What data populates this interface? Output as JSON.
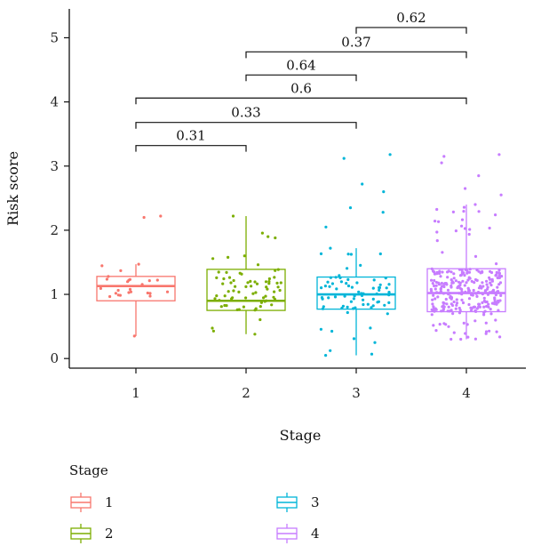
{
  "chart_data": {
    "type": "boxplot",
    "xlabel": "Stage",
    "ylabel": "Risk score",
    "categories": [
      "1",
      "2",
      "3",
      "4"
    ],
    "ylim": [
      -0.15,
      5.45
    ],
    "yticks": [
      0,
      1,
      2,
      3,
      4,
      5
    ],
    "grid": false,
    "legend": {
      "title": "Stage",
      "placement": "bottom-left",
      "entries": [
        "1",
        "2",
        "3",
        "4"
      ]
    },
    "series": [
      {
        "category": "1",
        "color": "#F8766D",
        "n_points": 25,
        "min": 0.35,
        "q1": 0.9,
        "median": 1.13,
        "q3": 1.28,
        "max": 1.47,
        "outliers": [
          2.22,
          2.2
        ]
      },
      {
        "category": "2",
        "color": "#7CAE00",
        "n_points": 70,
        "min": 0.38,
        "q1": 0.75,
        "median": 0.9,
        "q3": 1.39,
        "max": 2.22,
        "outliers": []
      },
      {
        "category": "3",
        "color": "#00B5D8",
        "n_points": 80,
        "min": 0.05,
        "q1": 0.77,
        "median": 1.0,
        "q3": 1.27,
        "max": 1.72,
        "outliers": [
          3.12,
          3.18,
          2.72,
          2.6,
          2.35,
          2.28,
          2.05
        ]
      },
      {
        "category": "4",
        "color": "#C77CFF",
        "n_points": 280,
        "min": 0.3,
        "q1": 0.73,
        "median": 1.02,
        "q3": 1.4,
        "max": 2.4,
        "outliers": [
          3.18,
          3.15,
          3.05,
          2.85,
          2.65,
          2.55
        ]
      }
    ],
    "comparisons": [
      {
        "from": "1",
        "to": "2",
        "p": "0.31",
        "y": 3.32
      },
      {
        "from": "1",
        "to": "3",
        "p": "0.33",
        "y": 3.68
      },
      {
        "from": "1",
        "to": "4",
        "p": "0.6",
        "y": 4.06
      },
      {
        "from": "2",
        "to": "3",
        "p": "0.64",
        "y": 4.42
      },
      {
        "from": "2",
        "to": "4",
        "p": "0.37",
        "y": 4.78
      },
      {
        "from": "3",
        "to": "4",
        "p": "0.62",
        "y": 5.16
      }
    ]
  }
}
